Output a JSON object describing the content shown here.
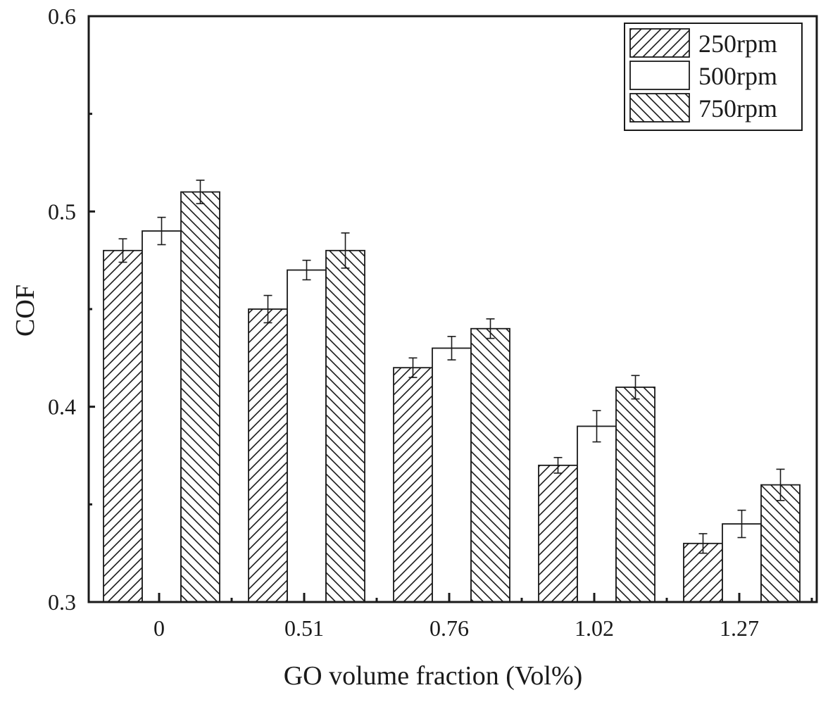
{
  "chart_data": {
    "type": "bar",
    "title": "",
    "xlabel": "GO volume fraction (Vol%)",
    "ylabel": "COF",
    "categories": [
      "0",
      "0.51",
      "0.76",
      "1.02",
      "1.27"
    ],
    "ylim": [
      0.3,
      0.6
    ],
    "yticks": [
      0.3,
      0.4,
      0.5,
      0.6
    ],
    "ytick_labels": [
      "0.3",
      "0.4",
      "0.5",
      "0.6"
    ],
    "grid": false,
    "legend_position": "top-right",
    "series": [
      {
        "name": "250rpm",
        "pattern": "forward-hatch",
        "values": [
          0.48,
          0.45,
          0.42,
          0.37,
          0.33
        ],
        "errors": [
          0.006,
          0.007,
          0.005,
          0.004,
          0.005
        ]
      },
      {
        "name": "500rpm",
        "pattern": "solid-white",
        "values": [
          0.49,
          0.47,
          0.43,
          0.39,
          0.34
        ],
        "errors": [
          0.007,
          0.005,
          0.006,
          0.008,
          0.007
        ]
      },
      {
        "name": "750rpm",
        "pattern": "back-hatch",
        "values": [
          0.51,
          0.48,
          0.44,
          0.41,
          0.36
        ],
        "errors": [
          0.006,
          0.009,
          0.005,
          0.006,
          0.008
        ]
      }
    ],
    "colors": {
      "stroke": "#1a1a1a",
      "fill": "#ffffff"
    }
  }
}
